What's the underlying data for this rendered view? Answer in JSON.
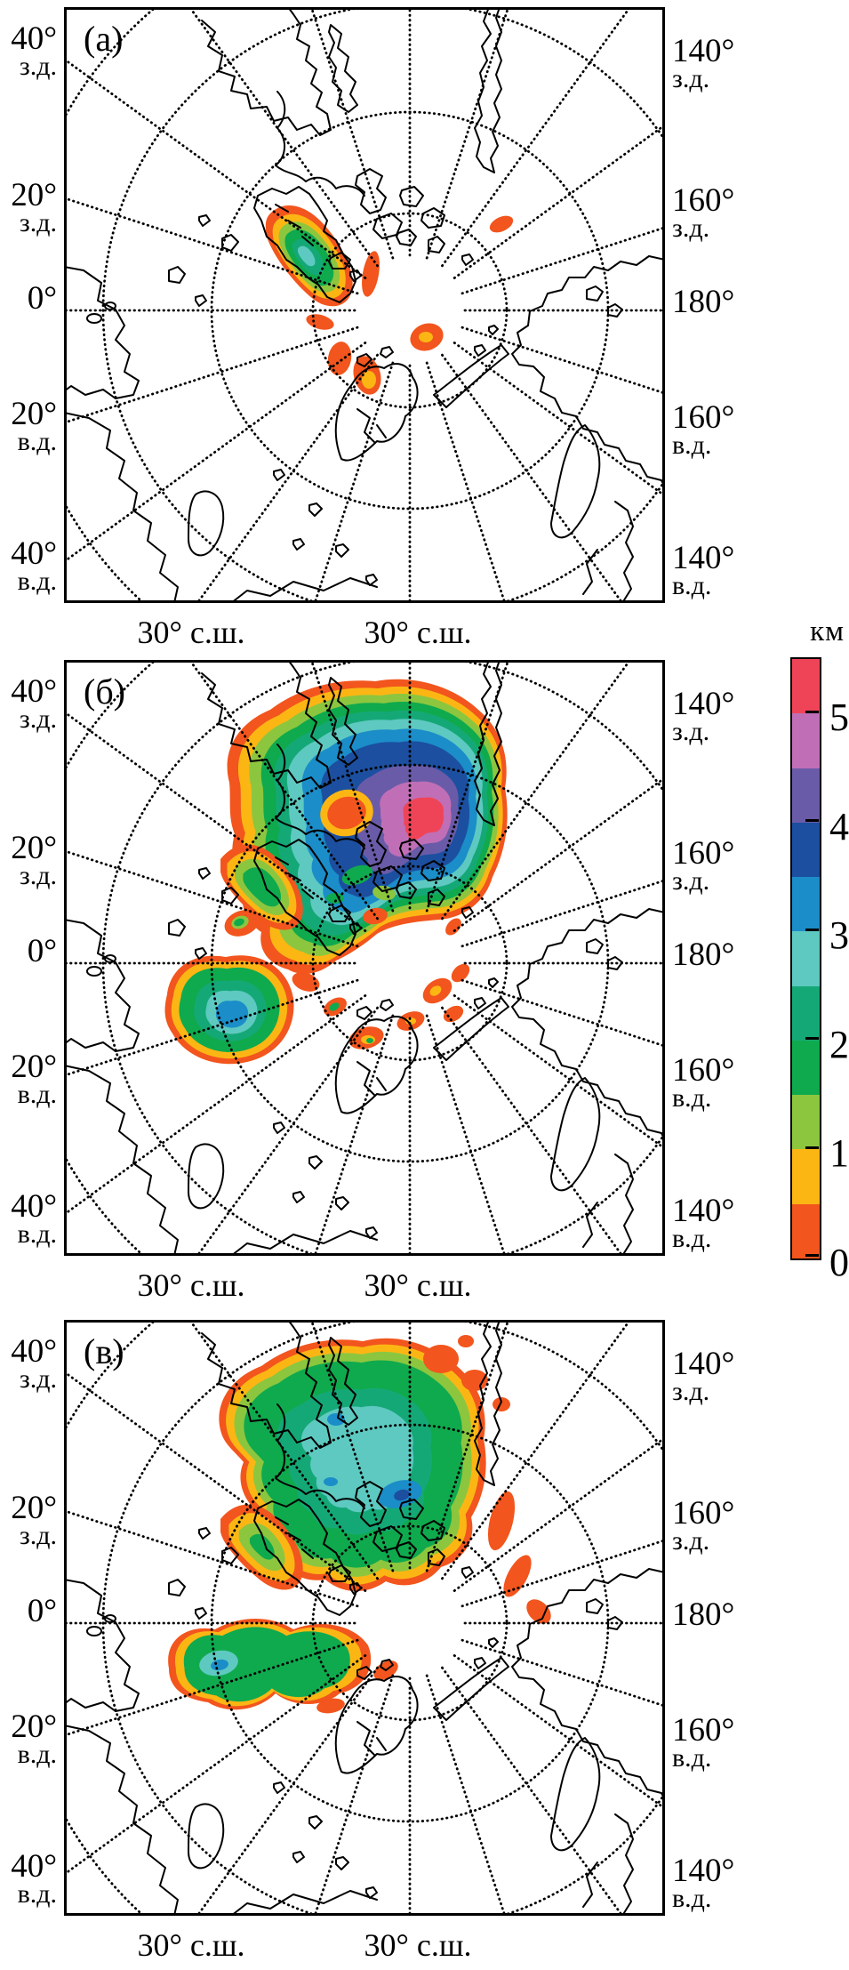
{
  "figure": {
    "description": "Three polar stereographic maps of Northern Hemisphere ice-sheet thickness with a shared colour scale in km",
    "background": "#ffffff"
  },
  "panels": [
    {
      "key": "a",
      "label": "(а)",
      "caption": "Small ice caps: Greenland cap plus minor orange patches near the pole"
    },
    {
      "key": "b",
      "label": "(б)",
      "caption": "Glacial maximum: large thick ice sheet (up to >5 km, pink core) plus southern ice sheet with blue core"
    },
    {
      "key": "v",
      "label": "(в)",
      "caption": "Intermediate state: broad 2–3 km green/cyan ice sheet and smaller southern double-lobed sheet"
    }
  ],
  "axis_labels": {
    "left": [
      {
        "deg": "40°",
        "hem": "з.д."
      },
      {
        "deg": "20°",
        "hem": "з.д."
      },
      {
        "deg": "0°",
        "hem": ""
      },
      {
        "deg": "20°",
        "hem": "в.д."
      },
      {
        "deg": "40°",
        "hem": "в.д."
      }
    ],
    "right": [
      {
        "deg": "140°",
        "hem": "з.д."
      },
      {
        "deg": "160°",
        "hem": "з.д."
      },
      {
        "deg": "180°",
        "hem": ""
      },
      {
        "deg": "160°",
        "hem": "в.д."
      },
      {
        "deg": "140°",
        "hem": "в.д."
      }
    ],
    "bottom_left": "30° с.ш.",
    "bottom_right": "30° с.ш."
  },
  "colorbar": {
    "title": "км",
    "tick_labels": [
      "5",
      "4",
      "3",
      "2",
      "1",
      "0"
    ],
    "unit_range": [
      0,
      5
    ],
    "segments_top_to_bottom": [
      {
        "range": ">5",
        "color": "#EF4457"
      },
      {
        "range": "4.5–5",
        "color": "#C06FB6"
      },
      {
        "range": "4–4.5",
        "color": "#6A5BA8"
      },
      {
        "range": "3.5–4",
        "color": "#1C4F9F"
      },
      {
        "range": "3–3.5",
        "color": "#1B8DC8"
      },
      {
        "range": "2.5–3",
        "color": "#5EC9C1"
      },
      {
        "range": "2–2.5",
        "color": "#15A877"
      },
      {
        "range": "1.5–2",
        "color": "#0FAA4D"
      },
      {
        "range": "1–1.5",
        "color": "#8CC63F"
      },
      {
        "range": "0.5–1",
        "color": "#FCB614"
      },
      {
        "range": "0–0.5",
        "color": "#F2551D"
      }
    ]
  },
  "palette": {
    "ice0": "#F2551D",
    "ice1": "#FCB614",
    "ice2": "#8CC63F",
    "ice3": "#0FAA4D",
    "ice4": "#15A877",
    "ice5": "#5EC9C1",
    "ice6": "#1B8DC8",
    "ice7": "#1C4F9F",
    "ice8": "#6A5BA8",
    "ice9": "#C06FB6",
    "ice10": "#EF4457",
    "coast": "#000000",
    "frame": "#000000"
  }
}
